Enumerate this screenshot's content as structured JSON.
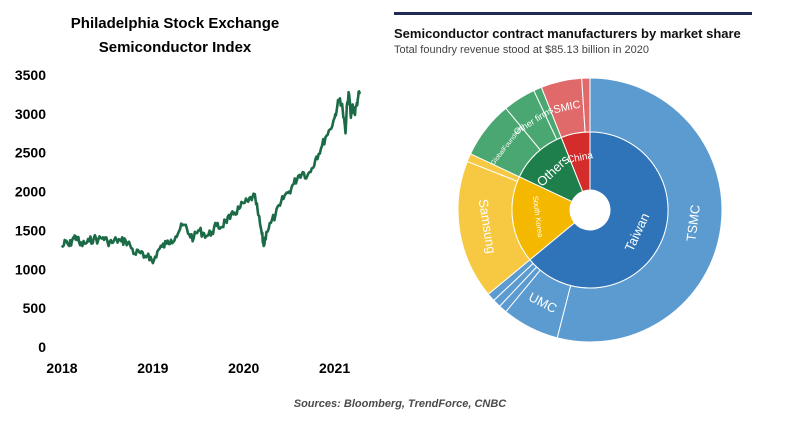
{
  "colors": {
    "line": "#1b6b47",
    "header_rule": "#1f2a56",
    "taiwan_outer": "#5b9bd0",
    "taiwan_inner": "#2f74b8",
    "korea_outer": "#f7c842",
    "korea_inner": "#f5b800",
    "others_outer": "#4ba772",
    "others_inner": "#1e7f4c",
    "china_outer": "#e06a6a",
    "china_inner": "#d42b2b"
  },
  "chart_data": [
    {
      "type": "line",
      "title_lines": [
        "Philadelphia  Stock Exchange",
        "Semiconductor  Index"
      ],
      "xlabel": "",
      "ylabel": "",
      "x_ticks": [
        "2018",
        "2019",
        "2020",
        "2021"
      ],
      "y_ticks": [
        "3500",
        "3000",
        "2500",
        "2000",
        "1500",
        "1000",
        "500",
        "0"
      ],
      "ylim": [
        0,
        3500
      ],
      "xlim": [
        2018.0,
        2021.28
      ],
      "series": [
        {
          "name": "Philadelphia Stock Exchange Semiconductor Index",
          "x": [
            2018.0,
            2018.04,
            2018.08,
            2018.12,
            2018.16,
            2018.2,
            2018.25,
            2018.3,
            2018.35,
            2018.4,
            2018.45,
            2018.5,
            2018.55,
            2018.6,
            2018.65,
            2018.7,
            2018.75,
            2018.8,
            2018.85,
            2018.9,
            2018.95,
            2019.0,
            2019.05,
            2019.1,
            2019.15,
            2019.2,
            2019.25,
            2019.3,
            2019.35,
            2019.4,
            2019.45,
            2019.5,
            2019.55,
            2019.6,
            2019.65,
            2019.7,
            2019.75,
            2019.8,
            2019.85,
            2019.9,
            2019.95,
            2020.0,
            2020.05,
            2020.1,
            2020.13,
            2020.16,
            2020.2,
            2020.22,
            2020.25,
            2020.3,
            2020.35,
            2020.4,
            2020.45,
            2020.5,
            2020.55,
            2020.6,
            2020.65,
            2020.7,
            2020.75,
            2020.8,
            2020.85,
            2020.9,
            2020.95,
            2021.0,
            2021.03,
            2021.06,
            2021.09,
            2021.12,
            2021.14,
            2021.16,
            2021.18,
            2021.2,
            2021.22,
            2021.24,
            2021.26,
            2021.28
          ],
          "y": [
            1280,
            1350,
            1300,
            1400,
            1420,
            1310,
            1330,
            1360,
            1400,
            1380,
            1410,
            1360,
            1340,
            1380,
            1360,
            1370,
            1310,
            1200,
            1220,
            1150,
            1200,
            1080,
            1230,
            1290,
            1330,
            1380,
            1420,
            1520,
            1570,
            1450,
            1400,
            1500,
            1470,
            1430,
            1480,
            1560,
            1540,
            1630,
            1650,
            1730,
            1780,
            1850,
            1870,
            1940,
            1900,
            1700,
            1450,
            1300,
            1480,
            1600,
            1700,
            1820,
            1950,
            2000,
            2100,
            2200,
            2250,
            2200,
            2300,
            2450,
            2550,
            2700,
            2800,
            2950,
            3100,
            3200,
            3050,
            2750,
            3150,
            3250,
            2950,
            3120,
            3000,
            3100,
            3220,
            3280
          ]
        }
      ]
    },
    {
      "type": "pie",
      "subtype": "sunburst",
      "title": "Semiconductor contract manufacturers by market share",
      "subtitle": "Total foundry revenue stood at $85.13 billion in 2020",
      "inner": [
        {
          "label": "Taiwan",
          "value": 64.0,
          "color_key": "taiwan_inner"
        },
        {
          "label": "South Korea",
          "value": 18.0,
          "color_key": "korea_inner"
        },
        {
          "label": "Others",
          "value": 12.0,
          "color_key": "others_inner"
        },
        {
          "label": "China",
          "value": 6.0,
          "color_key": "china_inner"
        }
      ],
      "outer": [
        {
          "label": "TSMC",
          "value": 54.0,
          "parent": "Taiwan"
        },
        {
          "label": "UMC",
          "value": 7.0,
          "parent": "Taiwan"
        },
        {
          "label": "",
          "value": 1.0,
          "parent": "Taiwan"
        },
        {
          "label": "",
          "value": 1.0,
          "parent": "Taiwan"
        },
        {
          "label": "",
          "value": 1.0,
          "parent": "Taiwan"
        },
        {
          "label": "Samsung",
          "value": 17.0,
          "parent": "South Korea"
        },
        {
          "label": "",
          "value": 1.0,
          "parent": "South Korea"
        },
        {
          "label": "GlobalFoundries",
          "value": 7.0,
          "parent": "Others"
        },
        {
          "label": "Other firms",
          "value": 4.0,
          "parent": "Others"
        },
        {
          "label": "",
          "value": 1.0,
          "parent": "Others"
        },
        {
          "label": "SMIC",
          "value": 5.0,
          "parent": "China"
        },
        {
          "label": "",
          "value": 1.0,
          "parent": "China"
        }
      ]
    }
  ],
  "source": "Sources: Bloomberg, TrendForce, CNBC"
}
